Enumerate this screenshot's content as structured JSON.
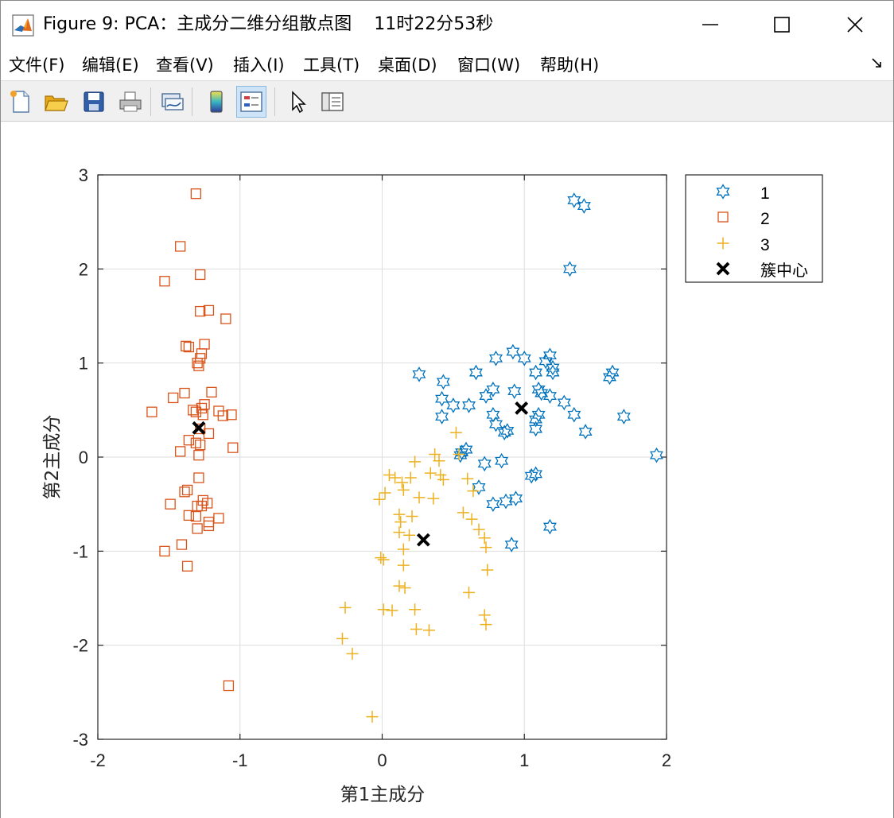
{
  "window": {
    "title": "Figure 9: PCA：主成分二维分组散点图    11时22分53秒",
    "minimize_label": "—",
    "maximize_label": "☐",
    "close_label": "✕"
  },
  "menu": {
    "items": [
      "文件(F)",
      "编辑(E)",
      "查看(V)",
      "插入(I)",
      "工具(T)",
      "桌面(D)",
      "窗口(W)",
      "帮助(H)"
    ],
    "overflow_icon": "undock-arrow-icon"
  },
  "toolbar": {
    "buttons": [
      "new-figure-icon",
      "open-file-icon",
      "save-icon",
      "print-icon",
      "link-plot-icon",
      "colorbar-icon",
      "legend-icon",
      "select-pointer-icon",
      "property-inspector-icon"
    ],
    "active": "legend-icon"
  },
  "chart_data": {
    "type": "scatter",
    "xlabel": "第1主成分",
    "ylabel": "第2主成分",
    "xlim": [
      -2,
      2
    ],
    "ylim": [
      -3,
      3
    ],
    "xticks": [
      "-2",
      "-1",
      "0",
      "1",
      "2"
    ],
    "yticks": [
      "-3",
      "-2",
      "-1",
      "0",
      "1",
      "2",
      "3"
    ],
    "grid": true,
    "legend_position": "outside-right-top",
    "legend": [
      "1",
      "2",
      "3",
      "簇中心"
    ],
    "series": [
      {
        "name": "1",
        "marker": "hexagram",
        "color": "#0072BD",
        "points": [
          [
            1.35,
            2.73
          ],
          [
            1.42,
            2.67
          ],
          [
            1.32,
            2.0
          ],
          [
            0.92,
            1.12
          ],
          [
            0.8,
            1.05
          ],
          [
            1.0,
            1.05
          ],
          [
            1.18,
            1.08
          ],
          [
            1.15,
            1.02
          ],
          [
            1.2,
            0.95
          ],
          [
            1.2,
            0.9
          ],
          [
            0.66,
            0.9
          ],
          [
            0.26,
            0.88
          ],
          [
            1.08,
            0.9
          ],
          [
            1.62,
            0.9
          ],
          [
            1.6,
            0.85
          ],
          [
            0.43,
            0.8
          ],
          [
            0.78,
            0.72
          ],
          [
            0.93,
            0.7
          ],
          [
            1.1,
            0.72
          ],
          [
            1.12,
            0.68
          ],
          [
            1.18,
            0.65
          ],
          [
            0.73,
            0.65
          ],
          [
            0.42,
            0.62
          ],
          [
            1.28,
            0.58
          ],
          [
            0.5,
            0.55
          ],
          [
            0.61,
            0.55
          ],
          [
            1.08,
            0.4
          ],
          [
            1.1,
            0.45
          ],
          [
            1.35,
            0.45
          ],
          [
            0.78,
            0.45
          ],
          [
            0.42,
            0.43
          ],
          [
            1.7,
            0.43
          ],
          [
            0.8,
            0.35
          ],
          [
            0.88,
            0.28
          ],
          [
            0.86,
            0.26
          ],
          [
            1.43,
            0.27
          ],
          [
            1.08,
            0.3
          ],
          [
            0.59,
            0.08
          ],
          [
            0.56,
            0.05
          ],
          [
            0.55,
            0.02
          ],
          [
            1.93,
            0.02
          ],
          [
            0.72,
            -0.07
          ],
          [
            0.84,
            -0.04
          ],
          [
            0.68,
            -0.32
          ],
          [
            1.05,
            -0.2
          ],
          [
            1.08,
            -0.18
          ],
          [
            0.78,
            -0.5
          ],
          [
            0.87,
            -0.47
          ],
          [
            0.94,
            -0.44
          ],
          [
            1.18,
            -0.74
          ],
          [
            0.91,
            -0.93
          ]
        ]
      },
      {
        "name": "2",
        "marker": "square",
        "color": "#D95319",
        "points": [
          [
            -1.31,
            2.8
          ],
          [
            -1.42,
            2.24
          ],
          [
            -1.28,
            1.94
          ],
          [
            -1.53,
            1.87
          ],
          [
            -1.28,
            1.55
          ],
          [
            -1.22,
            1.56
          ],
          [
            -1.1,
            1.47
          ],
          [
            -1.25,
            1.2
          ],
          [
            -1.38,
            1.18
          ],
          [
            -1.36,
            1.17
          ],
          [
            -1.28,
            1.05
          ],
          [
            -1.3,
            1.0
          ],
          [
            -1.27,
            1.1
          ],
          [
            -1.29,
            0.97
          ],
          [
            -1.2,
            0.69
          ],
          [
            -1.39,
            0.68
          ],
          [
            -1.47,
            0.63
          ],
          [
            -1.25,
            0.56
          ],
          [
            -1.27,
            0.52
          ],
          [
            -1.33,
            0.5
          ],
          [
            -1.62,
            0.48
          ],
          [
            -1.31,
            0.48
          ],
          [
            -1.15,
            0.49
          ],
          [
            -1.12,
            0.44
          ],
          [
            -1.06,
            0.45
          ],
          [
            -1.26,
            0.45
          ],
          [
            -1.28,
            0.3
          ],
          [
            -1.22,
            0.25
          ],
          [
            -1.36,
            0.18
          ],
          [
            -1.31,
            0.15
          ],
          [
            -1.28,
            0.13
          ],
          [
            -1.05,
            0.1
          ],
          [
            -1.42,
            0.06
          ],
          [
            -1.29,
            0.02
          ],
          [
            -1.29,
            -0.22
          ],
          [
            -1.37,
            -0.35
          ],
          [
            -1.39,
            -0.37
          ],
          [
            -1.26,
            -0.46
          ],
          [
            -1.23,
            -0.49
          ],
          [
            -1.3,
            -0.52
          ],
          [
            -1.49,
            -0.5
          ],
          [
            -1.27,
            -0.52
          ],
          [
            -1.31,
            -0.63
          ],
          [
            -1.36,
            -0.62
          ],
          [
            -1.22,
            -0.69
          ],
          [
            -1.22,
            -0.73
          ],
          [
            -1.15,
            -0.65
          ],
          [
            -1.3,
            -0.76
          ],
          [
            -1.41,
            -0.93
          ],
          [
            -1.53,
            -1.0
          ],
          [
            -1.37,
            -1.16
          ],
          [
            -1.08,
            -2.43
          ]
        ]
      },
      {
        "name": "3",
        "marker": "plus",
        "color": "#EDB120",
        "points": [
          [
            0.52,
            0.26
          ],
          [
            0.37,
            0.03
          ],
          [
            0.54,
            0.03
          ],
          [
            0.23,
            -0.05
          ],
          [
            0.4,
            -0.04
          ],
          [
            0.05,
            -0.19
          ],
          [
            0.34,
            -0.17
          ],
          [
            0.41,
            -0.19
          ],
          [
            0.43,
            -0.24
          ],
          [
            0.6,
            -0.23
          ],
          [
            0.09,
            -0.22
          ],
          [
            0.2,
            -0.22
          ],
          [
            0.14,
            -0.27
          ],
          [
            0.15,
            -0.35
          ],
          [
            0.02,
            -0.38
          ],
          [
            0.26,
            -0.43
          ],
          [
            0.36,
            -0.44
          ],
          [
            -0.02,
            -0.45
          ],
          [
            0.64,
            -0.36
          ],
          [
            0.57,
            -0.59
          ],
          [
            0.12,
            -0.61
          ],
          [
            0.21,
            -0.63
          ],
          [
            0.63,
            -0.66
          ],
          [
            0.13,
            -0.69
          ],
          [
            0.68,
            -0.77
          ],
          [
            0.12,
            -0.8
          ],
          [
            0.19,
            -0.83
          ],
          [
            0.72,
            -0.86
          ],
          [
            0.73,
            -0.96
          ],
          [
            0.15,
            -0.98
          ],
          [
            -0.01,
            -1.07
          ],
          [
            0.01,
            -1.09
          ],
          [
            0.15,
            -1.15
          ],
          [
            0.74,
            -1.2
          ],
          [
            0.12,
            -1.37
          ],
          [
            0.16,
            -1.39
          ],
          [
            0.61,
            -1.44
          ],
          [
            -0.26,
            -1.6
          ],
          [
            0.01,
            -1.62
          ],
          [
            0.07,
            -1.63
          ],
          [
            0.23,
            -1.62
          ],
          [
            0.72,
            -1.68
          ],
          [
            0.73,
            -1.78
          ],
          [
            0.24,
            -1.83
          ],
          [
            0.33,
            -1.84
          ],
          [
            -0.28,
            -1.93
          ],
          [
            -0.21,
            -2.09
          ],
          [
            -0.07,
            -2.76
          ]
        ]
      }
    ],
    "centroids": {
      "name": "簇中心",
      "marker": "x",
      "color": "#000000",
      "points": [
        [
          0.98,
          0.52
        ],
        [
          -1.29,
          0.31
        ],
        [
          0.29,
          -0.88
        ]
      ]
    }
  }
}
